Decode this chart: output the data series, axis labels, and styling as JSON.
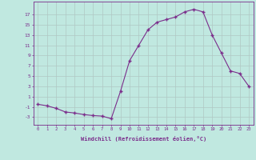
{
  "x": [
    0,
    1,
    2,
    3,
    4,
    5,
    6,
    7,
    8,
    9,
    10,
    11,
    12,
    13,
    14,
    15,
    16,
    17,
    18,
    19,
    20,
    21,
    22,
    23
  ],
  "y": [
    -0.5,
    -0.8,
    -1.3,
    -2.0,
    -2.2,
    -2.5,
    -2.7,
    -2.8,
    -3.3,
    2.0,
    8.0,
    11.0,
    14.0,
    15.5,
    16.0,
    16.5,
    17.5,
    18.0,
    17.5,
    13.0,
    9.5,
    6.0,
    5.5,
    3.0
  ],
  "xlim": [
    -0.5,
    23.5
  ],
  "ylim": [
    -4.5,
    19.5
  ],
  "yticks": [
    -3,
    -1,
    1,
    3,
    5,
    7,
    9,
    11,
    13,
    15,
    17
  ],
  "xticks": [
    0,
    1,
    2,
    3,
    4,
    5,
    6,
    7,
    8,
    9,
    10,
    11,
    12,
    13,
    14,
    15,
    16,
    17,
    18,
    19,
    20,
    21,
    22,
    23
  ],
  "xlabel": "Windchill (Refroidissement éolien,°C)",
  "line_color": "#7b2d8b",
  "marker": "+",
  "bg_color": "#c0e8e0",
  "grid_color": "#b0c8c4",
  "label_color": "#7b2d8b",
  "tick_color": "#7b2d8b",
  "font_family": "monospace"
}
